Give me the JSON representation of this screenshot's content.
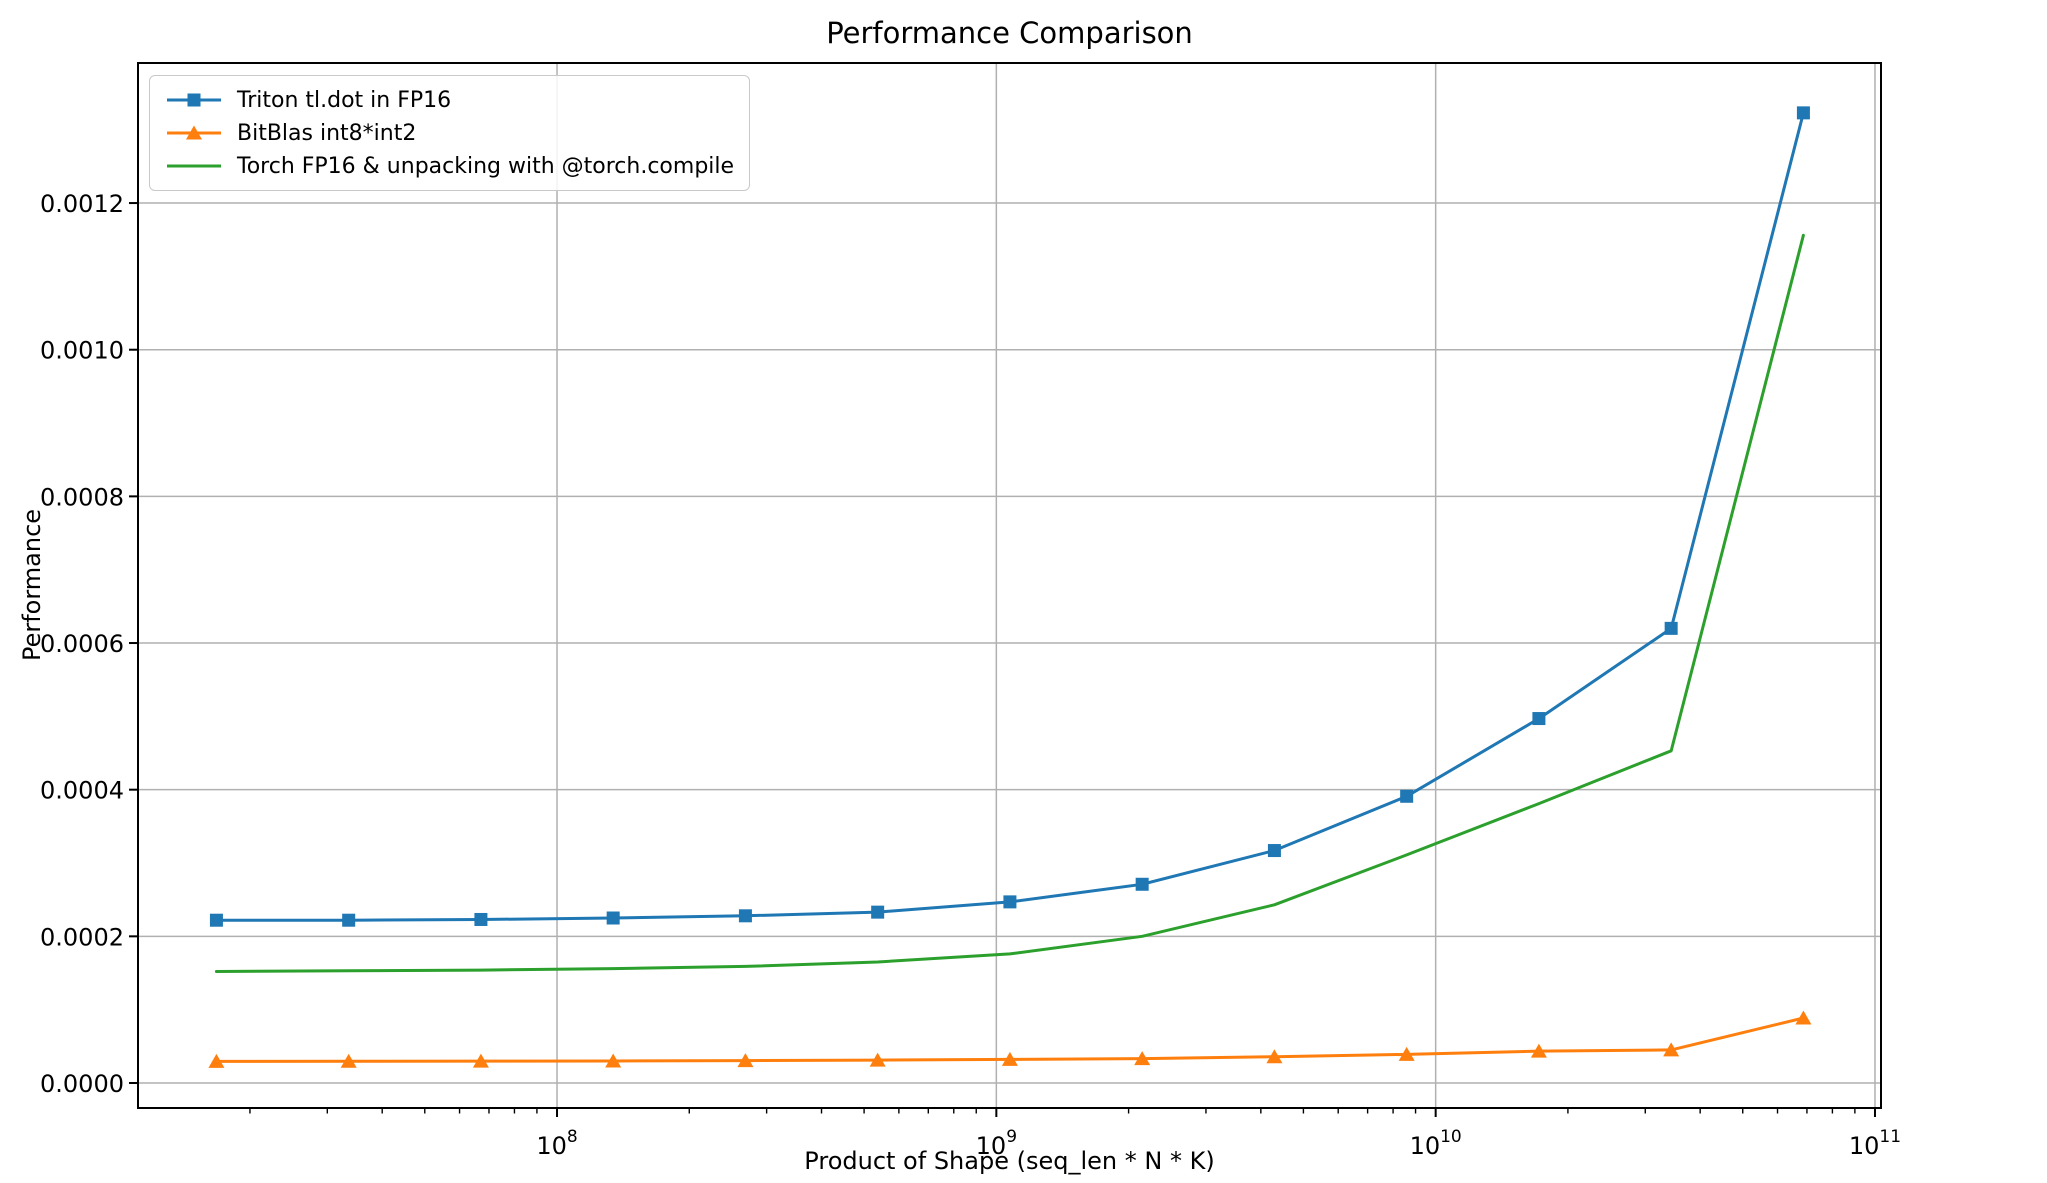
{
  "chart_data": {
    "type": "line",
    "title": "Performance Comparison",
    "xlabel": "Product of Shape (seq_len * N * K)",
    "ylabel": "Performance",
    "x_scale": "log",
    "xlim_log10": [
      7.0462,
      11.0137
    ],
    "ylim": [
      -3.41e-05,
      0.001391
    ],
    "grid": true,
    "legend_position": "upper-left",
    "x": [
      16777216,
      33554432,
      67108864,
      134217728,
      268435456,
      536870912,
      1073741824,
      2147483648,
      4294967296,
      8589934592,
      17179869184,
      34359738368,
      68719476736
    ],
    "series": [
      {
        "name": "Triton tl.dot in FP16",
        "color": "#1f77b4",
        "marker": "square",
        "values": [
          0.000222,
          0.000222,
          0.000223,
          0.000225,
          0.000228,
          0.000233,
          0.000247,
          0.000271,
          0.000317,
          0.000391,
          0.000497,
          0.00062,
          0.001323
        ]
      },
      {
        "name": "BitBlas int8*int2",
        "color": "#ff7f0e",
        "marker": "triangle",
        "values": [
          2.95e-05,
          2.96e-05,
          2.98e-05,
          3e-05,
          3.05e-05,
          3.12e-05,
          3.22e-05,
          3.33e-05,
          3.58e-05,
          3.9e-05,
          4.35e-05,
          4.52e-05,
          8.86e-05
        ]
      },
      {
        "name": "Torch FP16 & unpacking with @torch.compile",
        "color": "#2ca02c",
        "marker": "none",
        "values": [
          0.000152,
          0.000153,
          0.000154,
          0.000156,
          0.000159,
          0.000165,
          0.000176,
          0.0002,
          0.000243,
          0.000311,
          0.000381,
          0.000453,
          0.001156
        ]
      }
    ],
    "yticks": {
      "values": [
        0,
        0.0002,
        0.0004,
        0.0006,
        0.0008,
        0.001,
        0.0012
      ],
      "labels": [
        "0.0000",
        "0.0002",
        "0.0004",
        "0.0006",
        "0.0008",
        "0.0010",
        "0.0012"
      ]
    },
    "x_tick_base": "10",
    "xticks_log10": [
      8,
      9,
      10,
      11
    ],
    "colors": {
      "grid": "#b0b0b0",
      "spine": "#000000",
      "text": "#000000",
      "background": "#ffffff"
    }
  }
}
